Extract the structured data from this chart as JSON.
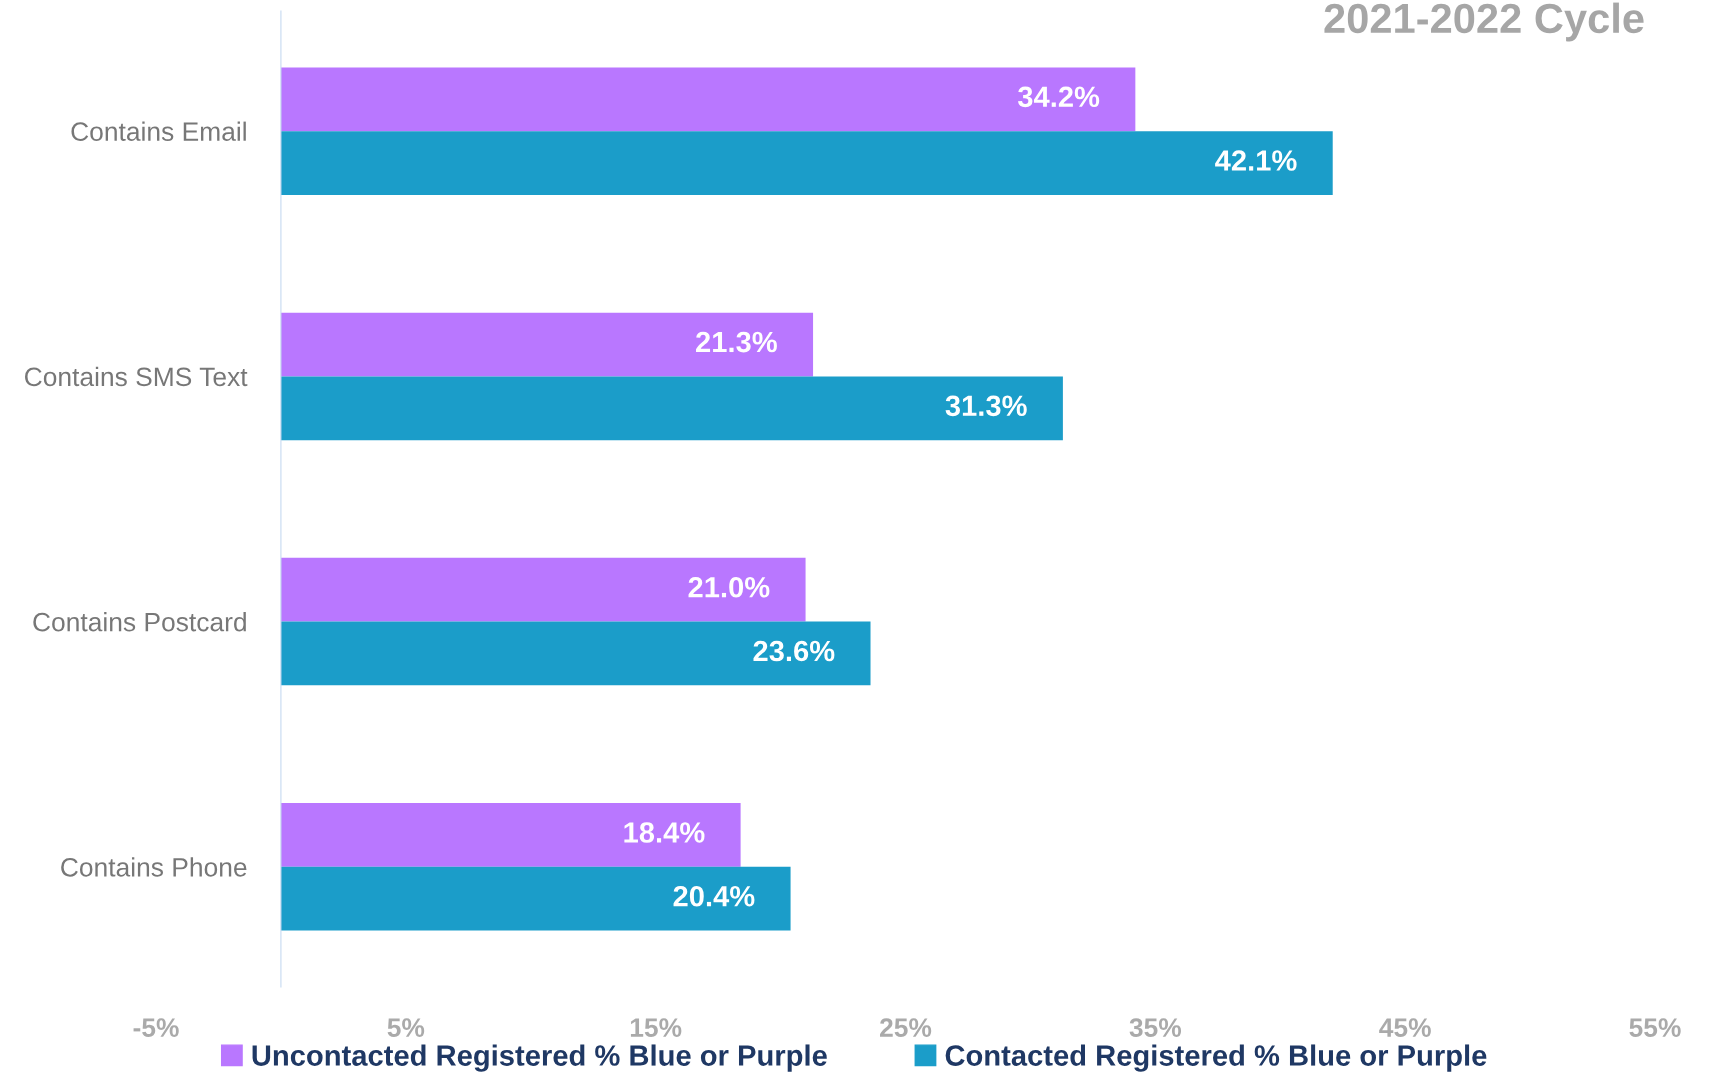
{
  "chart_data": {
    "type": "bar",
    "orientation": "horizontal",
    "title": "2021-2022 Cycle",
    "categories": [
      "Contains Email",
      "Contains SMS Text",
      "Contains Postcard",
      "Contains Phone"
    ],
    "series": [
      {
        "name": "Uncontacted Registered % Blue or Purple",
        "color": "#b977ff",
        "values": [
          34.2,
          21.3,
          21.0,
          18.4
        ],
        "value_labels": [
          "34.2%",
          "21.3%",
          "21.0%",
          "18.4%"
        ]
      },
      {
        "name": "Contacted Registered % Blue or Purple",
        "color": "#1b9dc9",
        "values": [
          42.1,
          31.3,
          23.6,
          20.4
        ],
        "value_labels": [
          "42.1%",
          "31.3%",
          "23.6%",
          "20.4%"
        ]
      }
    ],
    "xlim": [
      -5,
      55
    ],
    "xticks": [
      {
        "value": -5,
        "label": "-5%"
      },
      {
        "value": 5,
        "label": "5%"
      },
      {
        "value": 15,
        "label": "15%"
      },
      {
        "value": 25,
        "label": "25%"
      },
      {
        "value": 35,
        "label": "35%"
      },
      {
        "value": 45,
        "label": "45%"
      },
      {
        "value": 55,
        "label": "55%"
      }
    ],
    "grid": false,
    "legend": "bottom"
  }
}
